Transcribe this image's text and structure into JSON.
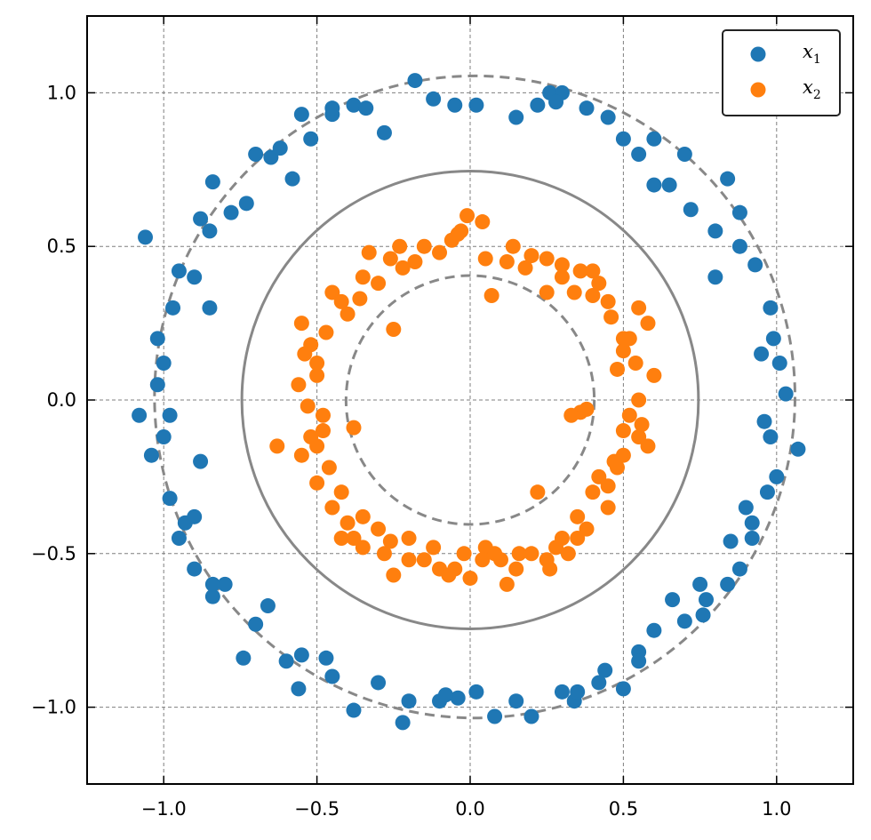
{
  "chart_data": {
    "type": "scatter",
    "title": "",
    "xlabel": "",
    "ylabel": "",
    "xlim": [
      -1.25,
      1.25
    ],
    "ylim": [
      -1.25,
      1.25
    ],
    "grid": true,
    "legend_position": "top-right",
    "xticks": [
      -1.0,
      -0.5,
      0.0,
      0.5,
      1.0
    ],
    "yticks": [
      -1.0,
      -0.5,
      0.0,
      0.5,
      1.0
    ],
    "xtick_labels": [
      "−1.0",
      "−0.5",
      "0.0",
      "0.5",
      "1.0"
    ],
    "ytick_labels": [
      "−1.0",
      "−0.5",
      "0.0",
      "0.5",
      "1.0"
    ],
    "reference_circles": [
      {
        "style": "dashed",
        "center": [
          0.015,
          0.01
        ],
        "radius": 1.045
      },
      {
        "style": "solid",
        "center": [
          0.0,
          0.0
        ],
        "radius": 0.745
      },
      {
        "style": "dashed",
        "center": [
          0.0,
          0.0
        ],
        "radius": 0.405
      }
    ],
    "series": [
      {
        "name": "x₁",
        "legend_tex": [
          "x",
          "1"
        ],
        "color": "#1f77b4",
        "points": [
          [
            0.02,
            0.96
          ],
          [
            -0.18,
            1.04
          ],
          [
            0.26,
            1.0
          ],
          [
            -0.45,
            0.93
          ],
          [
            0.55,
            0.8
          ],
          [
            -0.55,
            0.93
          ],
          [
            -0.65,
            0.79
          ],
          [
            0.7,
            0.8
          ],
          [
            0.84,
            0.72
          ],
          [
            -0.73,
            0.64
          ],
          [
            -0.84,
            0.71
          ],
          [
            0.88,
            0.61
          ],
          [
            0.93,
            0.44
          ],
          [
            -0.9,
            0.4
          ],
          [
            -1.06,
            0.53
          ],
          [
            0.99,
            0.2
          ],
          [
            -1.02,
            0.2
          ],
          [
            1.03,
            0.02
          ],
          [
            -1.08,
            -0.05
          ],
          [
            1.07,
            -0.16
          ],
          [
            -1.04,
            -0.18
          ],
          [
            0.97,
            -0.3
          ],
          [
            -0.98,
            -0.32
          ],
          [
            0.92,
            -0.45
          ],
          [
            -0.9,
            -0.55
          ],
          [
            0.84,
            -0.6
          ],
          [
            -0.84,
            -0.64
          ],
          [
            0.76,
            -0.7
          ],
          [
            -0.74,
            -0.84
          ],
          [
            0.6,
            -0.75
          ],
          [
            0.5,
            -0.94
          ],
          [
            -0.56,
            -0.94
          ],
          [
            -0.38,
            -1.01
          ],
          [
            0.34,
            -0.98
          ],
          [
            0.2,
            -1.03
          ],
          [
            -0.22,
            -1.05
          ],
          [
            0.08,
            -1.03
          ],
          [
            -0.04,
            -0.97
          ],
          [
            0.44,
            -0.88
          ],
          [
            -0.47,
            -0.84
          ],
          [
            0.66,
            -0.65
          ],
          [
            -0.66,
            -0.67
          ],
          [
            0.85,
            -0.46
          ],
          [
            -0.93,
            -0.4
          ],
          [
            0.96,
            -0.07
          ],
          [
            -0.98,
            -0.05
          ],
          [
            0.98,
            0.3
          ],
          [
            -0.97,
            0.3
          ],
          [
            0.8,
            0.55
          ],
          [
            -0.78,
            0.61
          ],
          [
            0.6,
            0.85
          ],
          [
            -0.62,
            0.82
          ],
          [
            0.38,
            0.95
          ],
          [
            -0.38,
            0.96
          ],
          [
            0.15,
            0.92
          ],
          [
            -0.05,
            0.96
          ],
          [
            0.3,
            1.0
          ],
          [
            -0.28,
            0.87
          ],
          [
            0.5,
            0.85
          ],
          [
            -0.52,
            0.85
          ],
          [
            0.72,
            0.62
          ],
          [
            -0.88,
            0.59
          ],
          [
            0.95,
            0.15
          ],
          [
            -1.0,
            0.12
          ],
          [
            0.98,
            -0.12
          ],
          [
            -1.0,
            -0.12
          ],
          [
            0.9,
            -0.35
          ],
          [
            -0.9,
            -0.38
          ],
          [
            0.75,
            -0.6
          ],
          [
            -0.8,
            -0.6
          ],
          [
            0.55,
            -0.82
          ],
          [
            -0.6,
            -0.85
          ],
          [
            0.3,
            -0.95
          ],
          [
            -0.3,
            -0.92
          ],
          [
            0.02,
            -0.95
          ],
          [
            -0.1,
            -0.98
          ],
          [
            0.42,
            -0.92
          ],
          [
            -0.45,
            -0.9
          ],
          [
            0.7,
            -0.72
          ],
          [
            -0.7,
            -0.73
          ],
          [
            0.88,
            -0.55
          ],
          [
            -0.95,
            -0.45
          ],
          [
            1.0,
            -0.25
          ],
          [
            -1.02,
            0.05
          ],
          [
            1.01,
            0.12
          ],
          [
            -0.95,
            0.42
          ],
          [
            0.88,
            0.5
          ],
          [
            -0.85,
            0.55
          ],
          [
            0.65,
            0.7
          ],
          [
            -0.7,
            0.8
          ],
          [
            0.45,
            0.92
          ],
          [
            -0.45,
            0.95
          ],
          [
            0.22,
            0.96
          ],
          [
            -0.12,
            0.98
          ],
          [
            -0.34,
            0.95
          ],
          [
            0.28,
            0.97
          ],
          [
            0.6,
            0.7
          ],
          [
            -0.58,
            0.72
          ],
          [
            0.8,
            0.4
          ],
          [
            -0.85,
            0.3
          ],
          [
            -0.88,
            -0.2
          ],
          [
            0.92,
            -0.4
          ],
          [
            -0.84,
            -0.6
          ],
          [
            0.55,
            -0.85
          ],
          [
            -0.2,
            -0.98
          ],
          [
            0.15,
            -0.98
          ],
          [
            -0.08,
            -0.96
          ],
          [
            0.35,
            -0.95
          ],
          [
            -0.55,
            -0.83
          ],
          [
            0.77,
            -0.65
          ]
        ]
      },
      {
        "name": "x₂",
        "legend_tex": [
          "x",
          "2"
        ],
        "color": "#ff7f0e",
        "points": [
          [
            -0.01,
            0.6
          ],
          [
            0.25,
            0.46
          ],
          [
            -0.23,
            0.5
          ],
          [
            0.4,
            0.42
          ],
          [
            -0.45,
            0.35
          ],
          [
            0.55,
            0.3
          ],
          [
            -0.52,
            0.18
          ],
          [
            0.58,
            0.25
          ],
          [
            0.6,
            0.08
          ],
          [
            -0.56,
            0.05
          ],
          [
            -0.63,
            -0.15
          ],
          [
            0.58,
            -0.15
          ],
          [
            -0.5,
            -0.27
          ],
          [
            0.45,
            -0.35
          ],
          [
            -0.42,
            -0.45
          ],
          [
            0.35,
            -0.45
          ],
          [
            -0.25,
            -0.57
          ],
          [
            0.15,
            -0.55
          ],
          [
            -0.05,
            -0.55
          ],
          [
            0.07,
            0.34
          ],
          [
            -0.25,
            0.23
          ],
          [
            0.38,
            -0.03
          ],
          [
            -0.38,
            -0.09
          ],
          [
            0.22,
            -0.3
          ],
          [
            -0.2,
            -0.45
          ],
          [
            0.05,
            -0.48
          ],
          [
            0.5,
            0.2
          ],
          [
            -0.4,
            0.28
          ],
          [
            0.3,
            0.4
          ],
          [
            -0.1,
            0.48
          ],
          [
            0.12,
            0.45
          ],
          [
            0.45,
            0.32
          ],
          [
            -0.5,
            0.12
          ],
          [
            0.52,
            -0.05
          ],
          [
            -0.48,
            -0.05
          ],
          [
            0.48,
            -0.22
          ],
          [
            -0.46,
            -0.22
          ],
          [
            0.4,
            -0.3
          ],
          [
            -0.35,
            -0.38
          ],
          [
            0.3,
            -0.45
          ],
          [
            -0.3,
            -0.42
          ],
          [
            0.2,
            -0.5
          ],
          [
            -0.15,
            -0.52
          ],
          [
            0.08,
            -0.5
          ],
          [
            -0.02,
            -0.5
          ],
          [
            0.18,
            0.43
          ],
          [
            -0.18,
            0.45
          ],
          [
            0.3,
            0.44
          ],
          [
            -0.3,
            0.38
          ],
          [
            0.42,
            0.38
          ],
          [
            -0.42,
            0.32
          ],
          [
            0.48,
            0.1
          ],
          [
            -0.5,
            0.08
          ],
          [
            0.5,
            -0.1
          ],
          [
            -0.52,
            -0.12
          ],
          [
            0.45,
            -0.28
          ],
          [
            -0.42,
            -0.3
          ],
          [
            0.35,
            -0.38
          ],
          [
            -0.28,
            -0.5
          ],
          [
            0.25,
            -0.52
          ],
          [
            -0.1,
            -0.55
          ],
          [
            0.1,
            -0.52
          ],
          [
            -0.03,
            0.55
          ],
          [
            0.05,
            0.46
          ],
          [
            -0.15,
            0.5
          ],
          [
            0.25,
            0.35
          ],
          [
            -0.35,
            0.4
          ],
          [
            0.52,
            0.2
          ],
          [
            -0.55,
            0.25
          ],
          [
            0.55,
            0.0
          ],
          [
            -0.53,
            -0.02
          ],
          [
            0.55,
            -0.12
          ],
          [
            -0.55,
            -0.18
          ],
          [
            0.5,
            -0.18
          ],
          [
            -0.45,
            -0.35
          ],
          [
            0.38,
            -0.42
          ],
          [
            -0.35,
            -0.48
          ],
          [
            0.28,
            -0.48
          ],
          [
            -0.2,
            -0.52
          ],
          [
            0.12,
            -0.6
          ],
          [
            0.0,
            -0.58
          ],
          [
            0.2,
            0.47
          ],
          [
            -0.22,
            0.43
          ],
          [
            0.34,
            0.35
          ],
          [
            -0.36,
            0.33
          ],
          [
            0.46,
            0.27
          ],
          [
            -0.47,
            0.22
          ],
          [
            0.54,
            0.12
          ],
          [
            -0.54,
            0.15
          ],
          [
            0.56,
            -0.08
          ],
          [
            -0.5,
            -0.15
          ],
          [
            0.42,
            -0.25
          ],
          [
            -0.4,
            -0.4
          ],
          [
            0.32,
            -0.5
          ],
          [
            -0.26,
            -0.46
          ],
          [
            0.16,
            -0.5
          ],
          [
            -0.12,
            -0.48
          ],
          [
            0.04,
            -0.52
          ],
          [
            -0.06,
            0.52
          ],
          [
            0.36,
            0.42
          ],
          [
            -0.33,
            0.48
          ],
          [
            0.5,
            0.16
          ],
          [
            -0.48,
            -0.1
          ],
          [
            0.47,
            -0.2
          ],
          [
            -0.38,
            -0.45
          ],
          [
            0.26,
            -0.55
          ],
          [
            -0.07,
            -0.57
          ],
          [
            0.14,
            0.5
          ],
          [
            -0.26,
            0.46
          ],
          [
            0.4,
            0.34
          ],
          [
            0.36,
            -0.04
          ],
          [
            0.33,
            -0.05
          ],
          [
            0.04,
            0.58
          ],
          [
            -0.04,
            0.54
          ]
        ]
      }
    ]
  }
}
